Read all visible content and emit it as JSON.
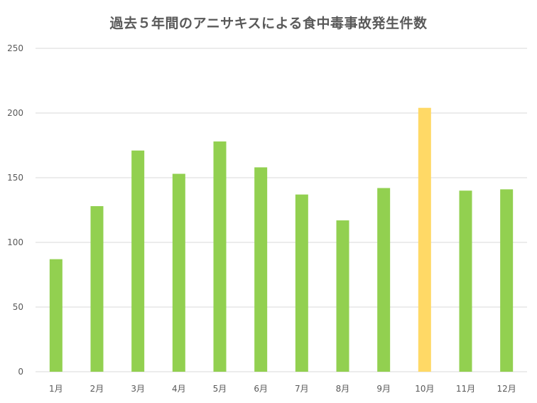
{
  "chart_data": {
    "type": "bar",
    "title": "過去５年間のアニサキスによる食中毒事故発生件数",
    "xlabel": "",
    "ylabel": "",
    "ylim": [
      0,
      250
    ],
    "yticks": [
      "0",
      "50",
      "100",
      "150",
      "200",
      "250"
    ],
    "categories": [
      "1月",
      "2月",
      "3月",
      "4月",
      "5月",
      "6月",
      "7月",
      "8月",
      "9月",
      "10月",
      "11月",
      "12月"
    ],
    "values": [
      87,
      128,
      171,
      153,
      178,
      158,
      137,
      117,
      142,
      204,
      140,
      141
    ],
    "highlight_index": 9,
    "colors": {
      "bar": "#92d050",
      "highlight": "#ffd966",
      "grid": "#d9d9d9",
      "text": "#595959"
    },
    "grid": true,
    "legend": "none"
  }
}
